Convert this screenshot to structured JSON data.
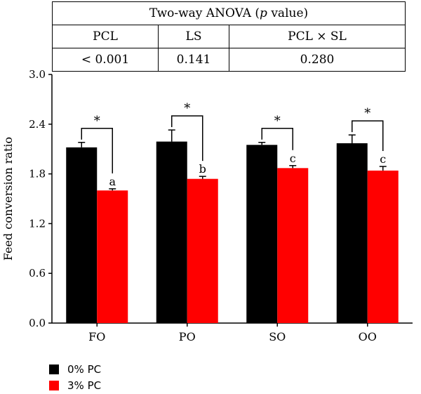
{
  "anova_table": {
    "title_text": "Two-way ANOVA (",
    "title_italic": "p",
    "title_suffix": " value)",
    "headers": [
      "PCL",
      "LS",
      "PCL × SL"
    ],
    "values": [
      "< 0.001",
      "0.141",
      "0.280"
    ]
  },
  "colors": {
    "series_0": "#000000",
    "series_1": "#ff0000"
  },
  "chart_data": {
    "type": "bar",
    "title": "",
    "xlabel": "",
    "ylabel": "Feed conversion ratio",
    "ylim": [
      0,
      3.0
    ],
    "yticks": [
      "0.0",
      "0.6",
      "1.2",
      "1.8",
      "2.4",
      "3.0"
    ],
    "categories": [
      "FO",
      "PO",
      "SO",
      "OO"
    ],
    "series": [
      {
        "name": "0% PC",
        "values": [
          2.12,
          2.19,
          2.15,
          2.17
        ],
        "errors": [
          0.06,
          0.14,
          0.03,
          0.1
        ]
      },
      {
        "name": "3% PC",
        "values": [
          1.6,
          1.74,
          1.87,
          1.84
        ],
        "errors": [
          0.02,
          0.03,
          0.03,
          0.05
        ],
        "letters": [
          "a",
          "b",
          "c",
          "c"
        ]
      }
    ],
    "significance": [
      "*",
      "*",
      "*",
      "*"
    ],
    "legend_position": "bottom-left",
    "grid": false
  }
}
